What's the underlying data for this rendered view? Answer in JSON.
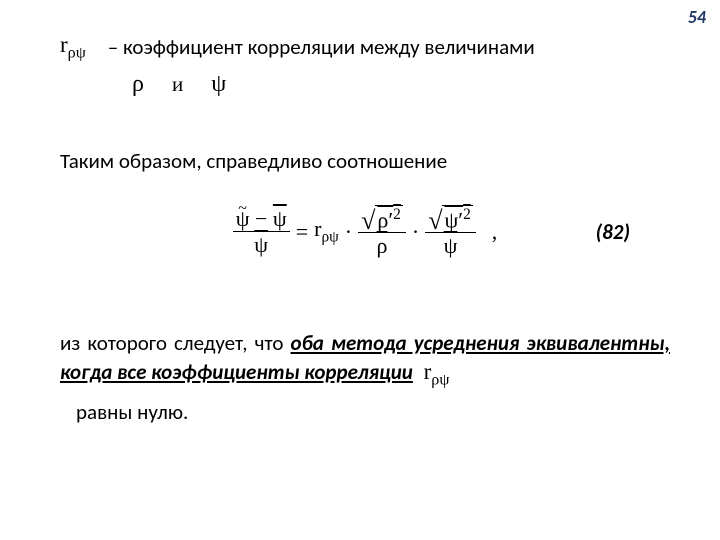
{
  "page_number": "54",
  "symbols": {
    "r_rho_psi": "r",
    "r_sub": "ρψ",
    "rho": "ρ",
    "psi": "ψ",
    "psi_tilde": "ψ",
    "psi_bar": "ψ",
    "rho_bar": "ρ"
  },
  "text": {
    "line1": "– коэффициент корреляции между величинами",
    "connective": "и",
    "para1": "Таким образом, справедливо соотношение",
    "eq_number": "(82)",
    "para2_a": "из которого следует, что ",
    "para2_b": "оба метода усреднения эквивалентны, когда все коэффициенты корреляции",
    "para3": "равны нулю."
  },
  "equation": {
    "eq_sign": "=",
    "dot": "·",
    "comma": ",",
    "minus": "−",
    "rho_prime_sq": "ρ′",
    "psi_prime_sq": "ψ′",
    "sq_exp": "2"
  },
  "style": {
    "page_num_color": "#1f3864"
  }
}
